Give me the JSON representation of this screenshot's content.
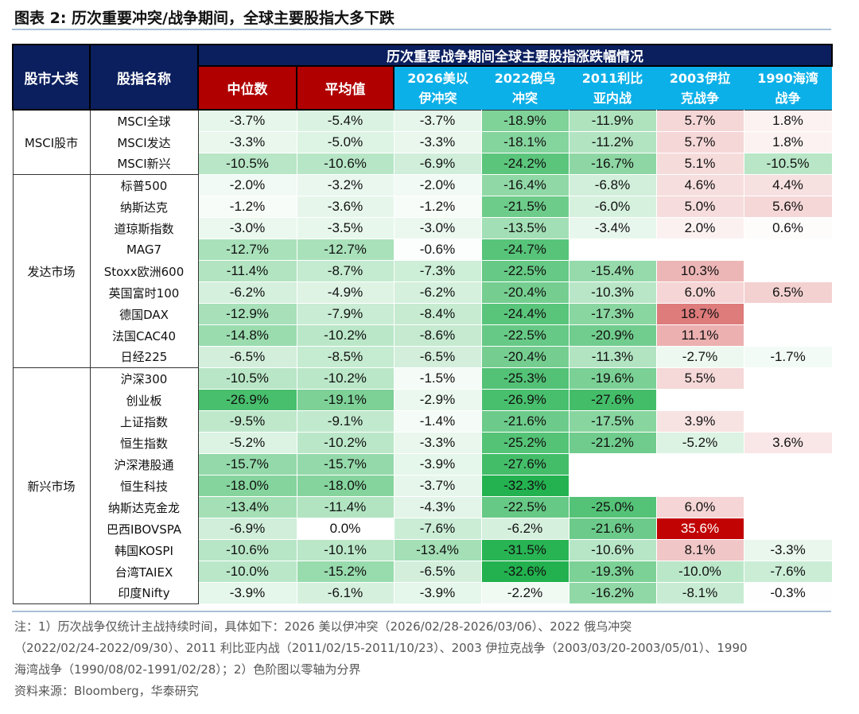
{
  "title": "图表 2:   历次重要冲突/战争期间，全球主要股指大多下跌",
  "header": {
    "cat": "股市大类",
    "name": "股指名称",
    "group": "历次重要战争期间全球主要股指涨跌幅情况",
    "median": "中位数",
    "mean": "平均值",
    "wars": [
      [
        "2026美以",
        "伊冲突"
      ],
      [
        "2022俄乌",
        "冲突"
      ],
      [
        "2011利比",
        "亚内战"
      ],
      [
        "2003伊拉",
        "克战争"
      ],
      [
        "1990海湾",
        "战争"
      ]
    ]
  },
  "colors": {
    "navy": "#0b1f5e",
    "red": "#b00000",
    "cyan": "#0cb0e8",
    "green_max": "#1fb04c",
    "red_max": "#c00000"
  },
  "groups": [
    {
      "name": "MSCI股市",
      "rows": [
        {
          "name": "MSCI全球",
          "v": [
            -3.7,
            -5.4,
            -3.7,
            -18.9,
            -11.9,
            5.7,
            1.8
          ]
        },
        {
          "name": "MSCI发达",
          "v": [
            -3.3,
            -5.0,
            -3.3,
            -18.1,
            -11.2,
            5.7,
            1.8
          ]
        },
        {
          "name": "MSCI新兴",
          "v": [
            -10.5,
            -10.6,
            -6.9,
            -24.2,
            -16.7,
            5.1,
            -10.5
          ]
        }
      ]
    },
    {
      "name": "发达市场",
      "rows": [
        {
          "name": "标普500",
          "v": [
            -2.0,
            -3.2,
            -2.0,
            -16.4,
            -6.8,
            4.6,
            4.4
          ]
        },
        {
          "name": "纳斯达克",
          "v": [
            -1.2,
            -3.6,
            -1.2,
            -21.5,
            -6.0,
            5.0,
            5.6
          ]
        },
        {
          "name": "道琼斯指数",
          "v": [
            -3.0,
            -3.5,
            -3.0,
            -13.5,
            -3.4,
            2.0,
            0.6
          ]
        },
        {
          "name": "MAG7",
          "v": [
            -12.7,
            -12.7,
            -0.6,
            -24.7,
            null,
            null,
            null
          ]
        },
        {
          "name": "Stoxx欧洲600",
          "v": [
            -11.4,
            -8.7,
            -7.3,
            -22.5,
            -15.4,
            10.3,
            null
          ]
        },
        {
          "name": "英国富时100",
          "v": [
            -6.2,
            -4.9,
            -6.2,
            -20.4,
            -10.3,
            6.0,
            6.5
          ]
        },
        {
          "name": "德国DAX",
          "v": [
            -12.9,
            -7.9,
            -8.4,
            -24.4,
            -17.3,
            18.7,
            null
          ]
        },
        {
          "name": "法国CAC40",
          "v": [
            -14.8,
            -10.2,
            -8.6,
            -22.5,
            -20.9,
            11.1,
            null
          ]
        },
        {
          "name": "日经225",
          "v": [
            -6.5,
            -8.5,
            -6.5,
            -20.4,
            -11.3,
            -2.7,
            -1.7
          ]
        }
      ]
    },
    {
      "name": "新兴市场",
      "rows": [
        {
          "name": "沪深300",
          "v": [
            -10.5,
            -10.2,
            -1.5,
            -25.3,
            -19.6,
            5.5,
            null
          ]
        },
        {
          "name": "创业板",
          "v": [
            -26.9,
            -19.1,
            -2.9,
            -26.9,
            -27.6,
            null,
            null
          ]
        },
        {
          "name": "上证指数",
          "v": [
            -9.5,
            -9.1,
            -1.4,
            -21.6,
            -17.5,
            3.9,
            null
          ]
        },
        {
          "name": "恒生指数",
          "v": [
            -5.2,
            -10.2,
            -3.3,
            -25.2,
            -21.2,
            -5.2,
            3.6
          ]
        },
        {
          "name": "沪深港股通",
          "v": [
            -15.7,
            -15.7,
            -3.9,
            -27.6,
            null,
            null,
            null
          ]
        },
        {
          "name": "恒生科技",
          "v": [
            -18.0,
            -18.0,
            -3.7,
            -32.3,
            null,
            null,
            null
          ]
        },
        {
          "name": "纳斯达克金龙",
          "v": [
            -13.4,
            -11.4,
            -4.3,
            -22.5,
            -25.0,
            6.0,
            null
          ]
        },
        {
          "name": "巴西IBOVSPA",
          "v": [
            -6.9,
            0.0,
            -7.6,
            -6.2,
            -21.6,
            35.6,
            null
          ]
        },
        {
          "name": "韩国KOSPI",
          "v": [
            -10.6,
            -10.1,
            -13.4,
            -31.5,
            -10.6,
            8.1,
            -3.3
          ]
        },
        {
          "name": "台湾TAIEX",
          "v": [
            -10.0,
            -15.2,
            -6.5,
            -32.6,
            -19.3,
            -10.0,
            -7.6
          ]
        },
        {
          "name": "印度Nifty",
          "v": [
            -3.9,
            -6.1,
            -3.9,
            -2.2,
            -16.2,
            -8.1,
            -0.3
          ]
        }
      ]
    }
  ],
  "notes": {
    "line1": "注：1）历次战争仅统计主战持续时间，具体如下：2026 美以伊冲突（2026/02/28-2026/03/06）、2022 俄乌冲突",
    "line2": "（2022/02/24-2022/09/30）、2011 利比亚内战（2011/02/15-2011/10/23）、2003 伊拉克战争（2003/03/20-2003/05/01）、1990",
    "line3": "海湾战争（1990/08/02-1991/02/28）；2）色阶图以零轴为分界",
    "source": "资料来源：Bloomberg，华泰研究"
  }
}
